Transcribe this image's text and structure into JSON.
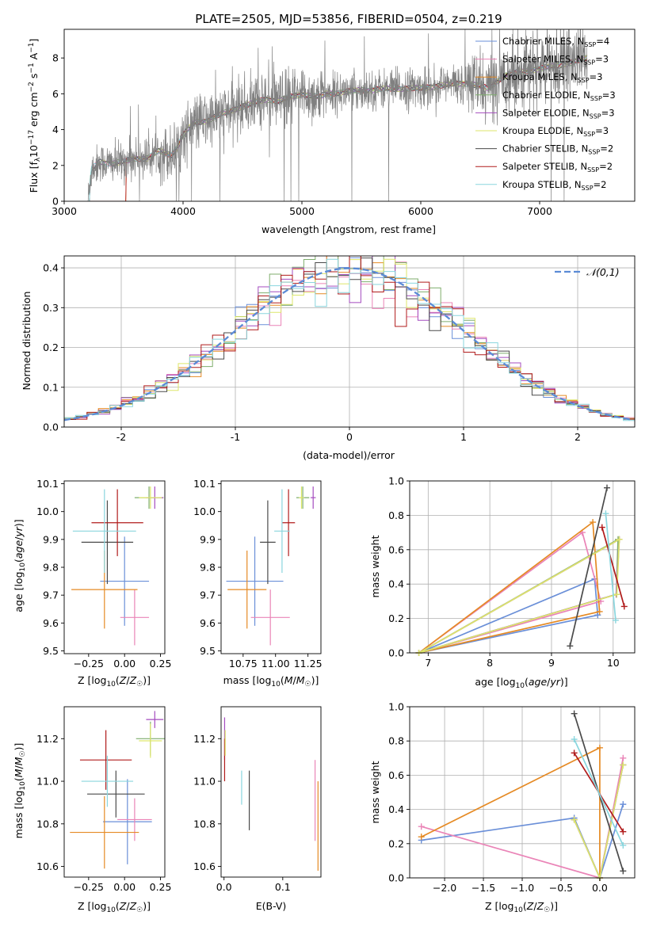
{
  "chart_data": [
    {
      "id": "spectrum",
      "type": "line",
      "title": "PLATE=2505, MJD=53856, FIBERID=0504, z=0.219",
      "xlabel": "wavelength [Angstrom, rest frame]",
      "ylabel": "Flux [f_λ 10^-17 erg cm^-2 s^-1 A^-1]",
      "xlim": [
        3000,
        7800
      ],
      "ylim": [
        0,
        9.6
      ],
      "xticks": [
        3000,
        4000,
        5000,
        6000,
        7000
      ],
      "yticks": [
        0,
        2,
        4,
        6,
        8
      ],
      "grid": false,
      "legend_position": "top-right",
      "data_series_color": "#808080",
      "anchors_x": [
        3200,
        3230,
        3300,
        3400,
        3500,
        3600,
        3700,
        3800,
        3900,
        3950,
        4000,
        4100,
        4200,
        4300,
        4500,
        4700,
        4800,
        5000,
        5150,
        5200,
        5500,
        5800,
        6000,
        6200,
        6400,
        6563,
        6700,
        6900,
        7100,
        7300,
        7400
      ],
      "anchors_y": [
        0,
        1.8,
        2.2,
        2.1,
        2.2,
        2.4,
        2.4,
        2.8,
        2.6,
        3.0,
        3.7,
        4.4,
        4.5,
        4.8,
        5.3,
        5.7,
        5.6,
        6.0,
        5.8,
        6.0,
        6.2,
        6.3,
        6.3,
        6.5,
        6.6,
        6.3,
        7.0,
        7.3,
        7.5,
        7.8,
        8.0
      ],
      "abs_lines": [
        3934,
        3969,
        4102,
        4300,
        4861,
        5175,
        5890,
        6563
      ],
      "series": [
        {
          "label": "Chabrier MILES, N",
          "sub": "SSP",
          "suffix": "=4",
          "color": "#6a8fd8"
        },
        {
          "label": "Salpeter MILES, N",
          "sub": "SSP",
          "suffix": "=3",
          "color": "#ea84b7"
        },
        {
          "label": "Kroupa MILES, N",
          "sub": "SSP",
          "suffix": "=3",
          "color": "#e58a24"
        },
        {
          "label": "Chabrier ELODIE, N",
          "sub": "SSP",
          "suffix": "=3",
          "color": "#7fae6d"
        },
        {
          "label": "Salpeter ELODIE, N",
          "sub": "SSP",
          "suffix": "=3",
          "color": "#a44bbf"
        },
        {
          "label": "Kroupa ELODIE, N",
          "sub": "SSP",
          "suffix": "=3",
          "color": "#dde66a"
        },
        {
          "label": "Chabrier STELIB, N",
          "sub": "SSP",
          "suffix": "=2",
          "color": "#4a4a4a"
        },
        {
          "label": "Salpeter STELIB, N",
          "sub": "SSP",
          "suffix": "=2",
          "color": "#b01b1b"
        },
        {
          "label": "Kroupa STELIB, N",
          "sub": "SSP",
          "suffix": "=2",
          "color": "#8ad6de"
        }
      ]
    },
    {
      "id": "residuals",
      "type": "bar",
      "xlabel": "(data-model)/error",
      "ylabel": "Normed distribution",
      "xlim": [
        -2.5,
        2.5
      ],
      "ylim": [
        0,
        0.43
      ],
      "xticks": [
        -2,
        -1,
        0,
        1,
        2
      ],
      "yticks": [
        0.0,
        0.1,
        0.2,
        0.3,
        0.4
      ],
      "grid": true,
      "legend_position": "top-right",
      "legend": "𝒩(0,1)",
      "normal_curve_color": "#5b8bd6",
      "bin_width": 0.1
    },
    {
      "id": "age_vs_Z",
      "type": "scatter",
      "xlabel": "Z [log10(Z/Z⊙)]",
      "ylabel": "age  [log10(age/yr)]",
      "xlim": [
        -0.42,
        0.28
      ],
      "ylim": [
        9.49,
        10.11
      ],
      "xticks": [
        -0.25,
        0.0,
        0.25
      ],
      "xticklabels": [
        "−0.25",
        "0.00",
        "0.25"
      ],
      "yticks": [
        9.5,
        9.6,
        9.7,
        9.8,
        9.9,
        10.0,
        10.1
      ],
      "points": [
        {
          "x": 0.0,
          "xerr": 0.17,
          "y": 9.75,
          "yerr": 0.16,
          "color": "#6a8fd8"
        },
        {
          "x": 0.07,
          "xerr": 0.1,
          "y": 9.62,
          "yerr": 0.1,
          "color": "#ea84b7"
        },
        {
          "x": -0.14,
          "xerr": 0.23,
          "y": 9.72,
          "yerr": 0.14,
          "color": "#e58a24"
        },
        {
          "x": 0.17,
          "xerr": 0.1,
          "y": 10.05,
          "yerr": 0.04,
          "color": "#7fae6d"
        },
        {
          "x": 0.21,
          "xerr": 0.06,
          "y": 10.05,
          "yerr": 0.04,
          "color": "#a44bbf"
        },
        {
          "x": 0.18,
          "xerr": 0.08,
          "y": 10.05,
          "yerr": 0.04,
          "color": "#dde66a"
        },
        {
          "x": -0.12,
          "xerr": 0.18,
          "y": 9.89,
          "yerr": 0.15,
          "color": "#4a4a4a"
        },
        {
          "x": -0.05,
          "xerr": 0.18,
          "y": 9.96,
          "yerr": 0.12,
          "color": "#b01b1b"
        },
        {
          "x": -0.14,
          "xerr": 0.22,
          "y": 9.93,
          "yerr": 0.15,
          "color": "#8ad6de"
        }
      ]
    },
    {
      "id": "age_vs_mass",
      "type": "scatter",
      "xlabel": "mass [log10(M/M⊙)]",
      "ylabel": "",
      "xlim": [
        10.58,
        11.35
      ],
      "ylim": [
        9.49,
        10.11
      ],
      "xticks": [
        10.75,
        11.0,
        11.25
      ],
      "xticklabels": [
        "10.75",
        "11.00",
        "11.25"
      ],
      "yticks": [
        9.5,
        9.6,
        9.7,
        9.8,
        9.9,
        10.0,
        10.1
      ],
      "points": [
        {
          "x": 10.84,
          "xerr": 0.22,
          "y": 9.75,
          "yerr": 0.16,
          "color": "#6a8fd8"
        },
        {
          "x": 10.96,
          "xerr": 0.15,
          "y": 9.62,
          "yerr": 0.1,
          "color": "#ea84b7"
        },
        {
          "x": 10.78,
          "xerr": 0.15,
          "y": 9.72,
          "yerr": 0.14,
          "color": "#e58a24"
        },
        {
          "x": 11.21,
          "xerr": 0.05,
          "y": 10.05,
          "yerr": 0.04,
          "color": "#7fae6d"
        },
        {
          "x": 11.29,
          "xerr": 0.02,
          "y": 10.05,
          "yerr": 0.04,
          "color": "#a44bbf"
        },
        {
          "x": 11.2,
          "xerr": 0.02,
          "y": 10.05,
          "yerr": 0.04,
          "color": "#dde66a"
        },
        {
          "x": 10.94,
          "xerr": 0.06,
          "y": 9.89,
          "yerr": 0.15,
          "color": "#4a4a4a"
        },
        {
          "x": 11.1,
          "xerr": 0.05,
          "y": 9.96,
          "yerr": 0.12,
          "color": "#b01b1b"
        },
        {
          "x": 11.05,
          "xerr": 0.06,
          "y": 9.93,
          "yerr": 0.15,
          "color": "#8ad6de"
        }
      ]
    },
    {
      "id": "weight_vs_age",
      "type": "line",
      "xlabel": "age  [log10(age/yr)]",
      "ylabel": "mass weight",
      "xlim": [
        6.7,
        10.35
      ],
      "ylim": [
        0,
        1
      ],
      "xticks": [
        7,
        8,
        9,
        10
      ],
      "yticks": [
        0.0,
        0.2,
        0.4,
        0.6,
        0.8,
        1.0
      ],
      "grid": true,
      "series": [
        {
          "color": "#6a8fd8",
          "x": [
            6.85,
            9.7,
            9.75,
            6.85
          ],
          "y": [
            0.0,
            0.43,
            0.22,
            0.0
          ]
        },
        {
          "color": "#ea84b7",
          "x": [
            6.85,
            9.5,
            9.8,
            6.85
          ],
          "y": [
            0.0,
            0.7,
            0.3,
            0.0
          ]
        },
        {
          "color": "#e58a24",
          "x": [
            6.85,
            9.67,
            9.78,
            6.85
          ],
          "y": [
            0.0,
            0.76,
            0.24,
            0.0
          ]
        },
        {
          "color": "#7fae6d",
          "x": [
            6.85,
            10.05,
            10.08,
            6.85
          ],
          "y": [
            0.0,
            0.34,
            0.66,
            0.0
          ]
        },
        {
          "color": "#a44bbf",
          "x": [
            6.85,
            10.05,
            10.1,
            6.85
          ],
          "y": [
            0.0,
            0.34,
            0.66,
            0.0
          ]
        },
        {
          "color": "#dde66a",
          "x": [
            6.85,
            10.06,
            10.1,
            6.85
          ],
          "y": [
            0.0,
            0.34,
            0.66,
            0.0
          ]
        },
        {
          "color": "#4a4a4a",
          "x": [
            9.3,
            9.9
          ],
          "y": [
            0.04,
            0.96
          ]
        },
        {
          "color": "#b01b1b",
          "x": [
            9.82,
            10.18
          ],
          "y": [
            0.73,
            0.27
          ]
        },
        {
          "color": "#8ad6de",
          "x": [
            9.88,
            10.04
          ],
          "y": [
            0.81,
            0.19
          ]
        }
      ]
    },
    {
      "id": "mass_vs_Z",
      "type": "scatter",
      "xlabel": "Z [log10(Z/Z⊙)]",
      "ylabel": "mass [log10(M/M⊙)]",
      "xlim": [
        -0.42,
        0.28
      ],
      "ylim": [
        10.55,
        11.35
      ],
      "xticks": [
        -0.25,
        0.0,
        0.25
      ],
      "xticklabels": [
        "−0.25",
        "0.00",
        "0.25"
      ],
      "yticks": [
        10.6,
        10.8,
        11.0,
        11.2
      ],
      "points": [
        {
          "x": 0.02,
          "xerr": 0.17,
          "y": 10.81,
          "yerr": 0.2,
          "color": "#6a8fd8"
        },
        {
          "x": 0.07,
          "xerr": 0.12,
          "y": 10.82,
          "yerr": 0.1,
          "color": "#ea84b7"
        },
        {
          "x": -0.14,
          "xerr": 0.24,
          "y": 10.76,
          "yerr": 0.17,
          "color": "#e58a24"
        },
        {
          "x": 0.18,
          "xerr": 0.1,
          "y": 11.2,
          "yerr": 0.08,
          "color": "#7fae6d"
        },
        {
          "x": 0.21,
          "xerr": 0.06,
          "y": 11.29,
          "yerr": 0.04,
          "color": "#a44bbf"
        },
        {
          "x": 0.18,
          "xerr": 0.08,
          "y": 11.19,
          "yerr": 0.08,
          "color": "#dde66a"
        },
        {
          "x": -0.06,
          "xerr": 0.2,
          "y": 10.94,
          "yerr": 0.11,
          "color": "#4a4a4a"
        },
        {
          "x": -0.13,
          "xerr": 0.18,
          "y": 11.1,
          "yerr": 0.14,
          "color": "#b01b1b"
        },
        {
          "x": -0.12,
          "xerr": 0.18,
          "y": 11.0,
          "yerr": 0.12,
          "color": "#8ad6de"
        }
      ]
    },
    {
      "id": "mass_vs_EBV",
      "type": "scatter",
      "xlabel": "E(B-V)",
      "ylabel": "",
      "xlim": [
        -0.005,
        0.165
      ],
      "ylim": [
        10.55,
        11.35
      ],
      "xticks": [
        0.0,
        0.1
      ],
      "xticklabels": [
        "0.0",
        "0.1"
      ],
      "yticks": [
        10.6,
        10.8,
        11.0,
        11.2
      ],
      "points": [
        {
          "x": 0.16,
          "xerr": 0,
          "y": 10.79,
          "yerr": 0.21,
          "color": "#e58a24"
        },
        {
          "x": 0.155,
          "xerr": 0,
          "y": 10.91,
          "yerr": 0.19,
          "color": "#ea84b7"
        },
        {
          "x": 0.03,
          "xerr": 0,
          "y": 10.97,
          "yerr": 0.08,
          "color": "#8ad6de"
        },
        {
          "x": 0.043,
          "xerr": 0,
          "y": 10.91,
          "yerr": 0.14,
          "color": "#4a4a4a"
        },
        {
          "x": 0.001,
          "xerr": 0,
          "y": 11.2,
          "yerr": 0.1,
          "color": "#a44bbf"
        },
        {
          "x": 0.001,
          "xerr": 0,
          "y": 11.1,
          "yerr": 0.1,
          "color": "#b01b1b"
        },
        {
          "x": 0.002,
          "xerr": 0,
          "y": 11.18,
          "yerr": 0.06,
          "color": "#dde66a"
        }
      ]
    },
    {
      "id": "weight_vs_Z",
      "type": "line",
      "xlabel": "Z [log10(Z/Z⊙)]",
      "ylabel": "mass weight",
      "xlim": [
        -2.45,
        0.45
      ],
      "ylim": [
        0,
        1
      ],
      "xticks": [
        -2.0,
        -1.5,
        -1.0,
        -0.5,
        0.0
      ],
      "xticklabels": [
        "−2.0",
        "−1.5",
        "−1.0",
        "−0.5",
        "0.0"
      ],
      "yticks": [
        0.0,
        0.2,
        0.4,
        0.6,
        0.8,
        1.0
      ],
      "grid": true,
      "series": [
        {
          "color": "#6a8fd8",
          "x": [
            -2.3,
            -0.33,
            0.0,
            0.3
          ],
          "y": [
            0.22,
            0.35,
            0.0,
            0.43
          ]
        },
        {
          "color": "#ea84b7",
          "x": [
            -2.3,
            0.0,
            0.3
          ],
          "y": [
            0.3,
            0.0,
            0.7
          ]
        },
        {
          "color": "#e58a24",
          "x": [
            -2.3,
            0.0,
            0.0
          ],
          "y": [
            0.24,
            0.76,
            0.0
          ]
        },
        {
          "color": "#7fae6d",
          "x": [
            -0.33,
            0.0,
            0.3
          ],
          "y": [
            0.34,
            0.0,
            0.66
          ]
        },
        {
          "color": "#a44bbf",
          "x": [
            -0.33,
            0.0,
            0.3
          ],
          "y": [
            0.34,
            0.0,
            0.66
          ]
        },
        {
          "color": "#dde66a",
          "x": [
            -0.33,
            0.0,
            0.3
          ],
          "y": [
            0.34,
            0.0,
            0.66
          ]
        },
        {
          "color": "#4a4a4a",
          "x": [
            -0.33,
            0.3
          ],
          "y": [
            0.96,
            0.04
          ]
        },
        {
          "color": "#b01b1b",
          "x": [
            -0.33,
            0.3
          ],
          "y": [
            0.73,
            0.27
          ]
        },
        {
          "color": "#8ad6de",
          "x": [
            -0.33,
            0.3
          ],
          "y": [
            0.81,
            0.19
          ]
        }
      ]
    }
  ]
}
